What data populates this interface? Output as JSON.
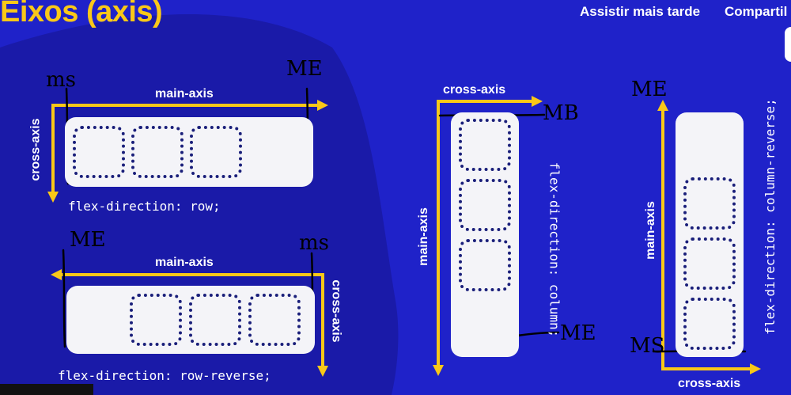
{
  "title": "Eixos (axis)",
  "header_links": {
    "watch_later": "Assistir mais tarde",
    "share": "Compartil"
  },
  "colors": {
    "background": "#1f22c9",
    "blob": "#1a1aa8",
    "accent": "#f9c818",
    "box": "#f4f4f8",
    "item_border": "#1a1f7a"
  },
  "panels": {
    "row": {
      "main_axis": "main-axis",
      "cross_axis": "cross-axis",
      "code": "flex-direction: row;",
      "notes": {
        "start": "ms",
        "end": "ME"
      }
    },
    "row_reverse": {
      "main_axis": "main-axis",
      "cross_axis": "cross-axis",
      "code": "flex-direction: row-reverse;",
      "notes": {
        "start": "ms",
        "end": "ME"
      }
    },
    "column": {
      "main_axis": "main-axis",
      "cross_axis": "cross-axis",
      "code": "flex-direction: column;",
      "notes": {
        "start": "MB",
        "end": "ME"
      }
    },
    "column_reverse": {
      "main_axis": "main-axis",
      "cross_axis": "cross-axis",
      "code": "flex-direction: column-reverse;",
      "notes": {
        "start": "MS",
        "end": "ME"
      }
    }
  }
}
